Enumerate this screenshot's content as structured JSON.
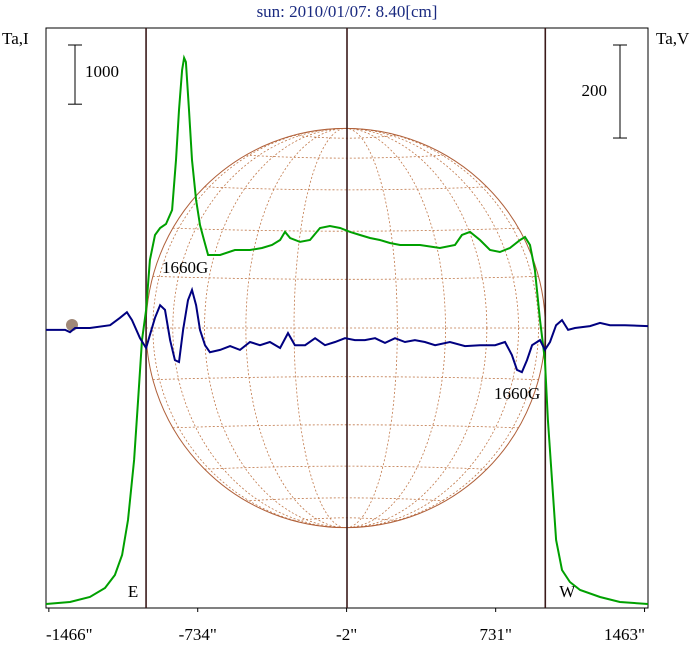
{
  "chart_data": {
    "type": "line",
    "title": "sun: 2010/01/07: 8.40[cm]",
    "y_label": "Ta,I",
    "y2_label": "Ta,V",
    "xlim": [
      -1480,
      1480
    ],
    "xticks": [
      {
        "value": -1466,
        "label": "-1466\""
      },
      {
        "value": -734,
        "label": "-734\""
      },
      {
        "value": -2,
        "label": "-2\""
      },
      {
        "value": 731,
        "label": "731\""
      },
      {
        "value": 1463,
        "label": "1463\""
      }
    ],
    "ylim": [
      0,
      9800
    ],
    "y2lim": [
      -602,
      645
    ],
    "y_scale_bar": 1000,
    "y2_scale_bar": 200,
    "markers": [
      {
        "x": -988,
        "label": "E"
      },
      {
        "x": 0
      },
      {
        "x": 975,
        "label": "W"
      }
    ],
    "annotations": [
      "1660G",
      "1660G"
    ],
    "series": [
      {
        "color": "#00a000",
        "x": [
          -1480,
          -1362,
          -1264,
          -1190,
          -1141,
          -1106,
          -1077,
          -1047,
          -1027,
          -1008,
          -988,
          -969,
          -944,
          -919,
          -890,
          -860,
          -841,
          -826,
          -811,
          -801,
          -792,
          -777,
          -762,
          -742,
          -723,
          -703,
          -683,
          -624,
          -551,
          -477,
          -418,
          -369,
          -329,
          -305,
          -280,
          -231,
          -182,
          -133,
          -84,
          -34,
          15,
          64,
          113,
          162,
          211,
          261,
          359,
          457,
          531,
          565,
          605,
          654,
          703,
          752,
          801,
          851,
          875,
          900,
          924,
          949,
          973,
          988,
          1008,
          1028,
          1057,
          1096,
          1146,
          1244,
          1342,
          1480
        ],
        "values": [
          68,
          101,
          186,
          338,
          558,
          896,
          1487,
          2501,
          3515,
          4529,
          5035,
          5880,
          6303,
          6421,
          6489,
          6725,
          7570,
          8415,
          9091,
          9294,
          9226,
          8415,
          7570,
          6894,
          6472,
          6218,
          5965,
          5965,
          6049,
          6049,
          6083,
          6134,
          6218,
          6354,
          6252,
          6185,
          6218,
          6421,
          6455,
          6421,
          6354,
          6303,
          6252,
          6218,
          6168,
          6134,
          6134,
          6083,
          6134,
          6303,
          6354,
          6218,
          6049,
          6016,
          6083,
          6218,
          6269,
          6134,
          5711,
          4867,
          4191,
          3177,
          2163,
          1149,
          642,
          439,
          304,
          186,
          101,
          68
        ]
      },
      {
        "color": "#000080",
        "axis": "y2",
        "x": [
          -1480,
          -1386,
          -1362,
          -1337,
          -1264,
          -1165,
          -1116,
          -1082,
          -1057,
          -1018,
          -988,
          -969,
          -944,
          -919,
          -895,
          -870,
          -846,
          -826,
          -806,
          -782,
          -762,
          -742,
          -723,
          -698,
          -674,
          -624,
          -575,
          -526,
          -477,
          -428,
          -379,
          -329,
          -290,
          -256,
          -206,
          -157,
          -108,
          -59,
          -10,
          39,
          88,
          138,
          187,
          236,
          285,
          334,
          383,
          433,
          506,
          580,
          654,
          728,
          777,
          811,
          836,
          860,
          885,
          910,
          949,
          973,
          998,
          1028,
          1057,
          1087,
          1121,
          1195,
          1244,
          1293,
          1367,
          1480
        ],
        "values": [
          -4,
          -4,
          -9,
          0,
          0,
          6,
          22,
          34,
          17,
          -22,
          -43,
          -15,
          22,
          49,
          39,
          -26,
          -69,
          -73,
          -4,
          60,
          82,
          49,
          -4,
          -37,
          -52,
          -47,
          -39,
          -47,
          -30,
          -37,
          -30,
          -43,
          -11,
          -37,
          -37,
          -22,
          -37,
          -30,
          -22,
          -26,
          -26,
          -22,
          -32,
          -22,
          -30,
          -26,
          -30,
          -37,
          -30,
          -39,
          -37,
          -37,
          -30,
          -58,
          -90,
          -95,
          -69,
          -37,
          -26,
          -47,
          -30,
          6,
          17,
          -4,
          0,
          4,
          11,
          6,
          6,
          4
        ]
      }
    ]
  }
}
